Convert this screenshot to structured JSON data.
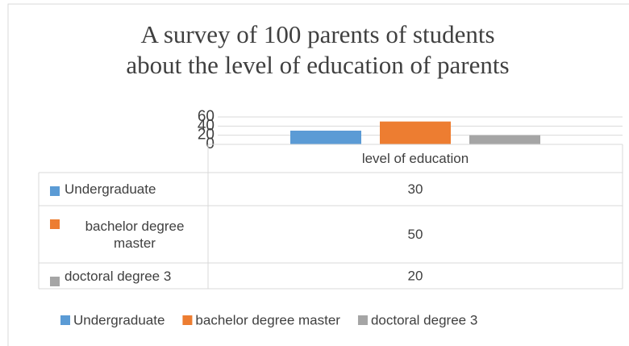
{
  "chart_data": {
    "type": "bar",
    "title": [
      "A survey of 100 parents of students",
      "about the level of education of parents"
    ],
    "categories": [
      "level of education"
    ],
    "series": [
      {
        "name": "Undergraduate",
        "color": "#5b9bd5",
        "values": [
          30
        ]
      },
      {
        "name": "bachelor degree master",
        "color": "#ed7d31",
        "values": [
          50
        ]
      },
      {
        "name": "doctoral degree 3",
        "color": "#a5a5a5",
        "values": [
          20
        ]
      }
    ],
    "ylim": [
      0,
      60
    ],
    "yticks": [
      0,
      20,
      40,
      60
    ],
    "grid": true,
    "data_table": true,
    "legend": "bottom"
  }
}
